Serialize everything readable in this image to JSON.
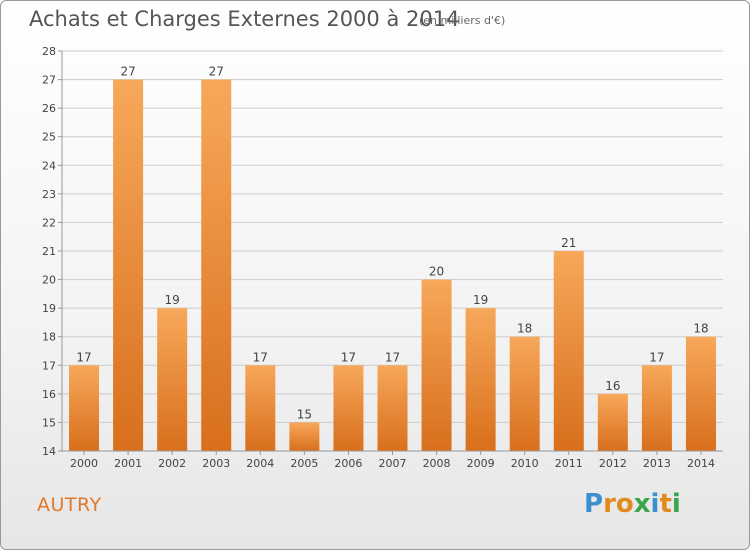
{
  "header": {
    "title": "Achats et Charges Externes 2000 à 2014",
    "subtitle": "(en milliers d'€)"
  },
  "commune": "AUTRY",
  "logo": {
    "text": "Proxiti",
    "letters": [
      {
        "ch": "P",
        "color": "#3a8fd0"
      },
      {
        "ch": "r",
        "color": "#e38a1e"
      },
      {
        "ch": "o",
        "color": "#e38a1e"
      },
      {
        "ch": "x",
        "color": "#3aa54a"
      },
      {
        "ch": "i",
        "color": "#3a8fd0"
      },
      {
        "ch": "t",
        "color": "#e38a1e"
      },
      {
        "ch": "i",
        "color": "#3aa54a"
      }
    ]
  },
  "chart_data": {
    "type": "bar",
    "title": "Achats et Charges Externes 2000 à 2014",
    "subtitle": "(en milliers d'€)",
    "xlabel": "",
    "ylabel": "",
    "categories": [
      "2000",
      "2001",
      "2002",
      "2003",
      "2004",
      "2005",
      "2006",
      "2007",
      "2008",
      "2009",
      "2010",
      "2011",
      "2012",
      "2013",
      "2014"
    ],
    "values": [
      17,
      27,
      19,
      27,
      17,
      15,
      17,
      17,
      20,
      19,
      18,
      21,
      16,
      17,
      18
    ],
    "ylim": [
      14,
      28
    ],
    "yticks": [
      14,
      15,
      16,
      17,
      18,
      19,
      20,
      21,
      22,
      23,
      24,
      25,
      26,
      27,
      28
    ],
    "grid": true,
    "colors": {
      "bar_light": "#f7a85a",
      "bar_dark": "#d86f1c",
      "grid": "#cccccc",
      "axis": "#999999",
      "text": "#444444"
    }
  }
}
